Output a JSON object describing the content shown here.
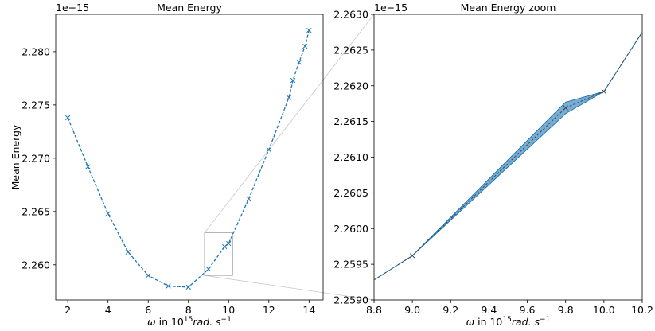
{
  "chart_data": [
    {
      "type": "line",
      "title": "Mean Energy",
      "ylabel": "Mean Energy",
      "xlabel_prefix": "ω in 10",
      "xlabel_exp": "15",
      "xlabel_unit": "rad. s",
      "xlabel_unit_exp": "−1",
      "offset_label": "1e−15",
      "color": "#1f77b4",
      "marker": "x",
      "linestyle": "dashed",
      "xlim": [
        1.4,
        14.7
      ],
      "ylim": [
        2.2567,
        2.2835
      ],
      "xticks": [
        2,
        4,
        6,
        8,
        10,
        12,
        14
      ],
      "yticks": [
        2.26,
        2.265,
        2.27,
        2.275,
        2.28
      ],
      "ytick_labels": [
        "2.260",
        "2.265",
        "2.270",
        "2.275",
        "2.280"
      ],
      "x": [
        2,
        3,
        4,
        5,
        6,
        7,
        8,
        9,
        9.8,
        10,
        11,
        12,
        13,
        13.2,
        13.5,
        13.8,
        14
      ],
      "y": [
        2.2738,
        2.2692,
        2.2648,
        2.2612,
        2.259,
        2.258,
        2.2579,
        2.2596,
        2.2617,
        2.262,
        2.2662,
        2.2708,
        2.2757,
        2.2773,
        2.279,
        2.2805,
        2.282
      ],
      "inset_box": {
        "x": [
          8.8,
          10.2
        ],
        "y": [
          2.259,
          2.263
        ]
      }
    },
    {
      "type": "area",
      "title": "Mean Energy zoom",
      "xlabel_prefix": "ω in 10",
      "xlabel_exp": "15",
      "xlabel_unit": "rad. s",
      "xlabel_unit_exp": "−1",
      "offset_label": "1e−15",
      "color": "#1f77b4",
      "band_color": "#1f77b4",
      "xlim": [
        8.8,
        10.2
      ],
      "ylim": [
        2.259,
        2.263
      ],
      "xticks": [
        8.8,
        9.0,
        9.2,
        9.4,
        9.6,
        9.8,
        10.0,
        10.2
      ],
      "xtick_labels": [
        "8.8",
        "9.0",
        "9.2",
        "9.4",
        "9.6",
        "9.8",
        "10.0",
        "10.2"
      ],
      "yticks": [
        2.259,
        2.2595,
        2.26,
        2.2605,
        2.261,
        2.2615,
        2.262,
        2.2625,
        2.263
      ],
      "ytick_labels": [
        "2.2590",
        "2.2595",
        "2.2600",
        "2.2605",
        "2.2610",
        "2.2615",
        "2.2620",
        "2.2625",
        "2.2630"
      ],
      "x": [
        8.8,
        9.0,
        9.8,
        10.0,
        10.2
      ],
      "y": [
        2.25928,
        2.25962,
        2.26169,
        2.26192,
        2.26275
      ],
      "band_upper": [
        2.25928,
        2.25962,
        2.26177,
        2.26192,
        2.26275
      ],
      "band_lower": [
        2.25928,
        2.25962,
        2.26161,
        2.26192,
        2.26275
      ]
    }
  ]
}
